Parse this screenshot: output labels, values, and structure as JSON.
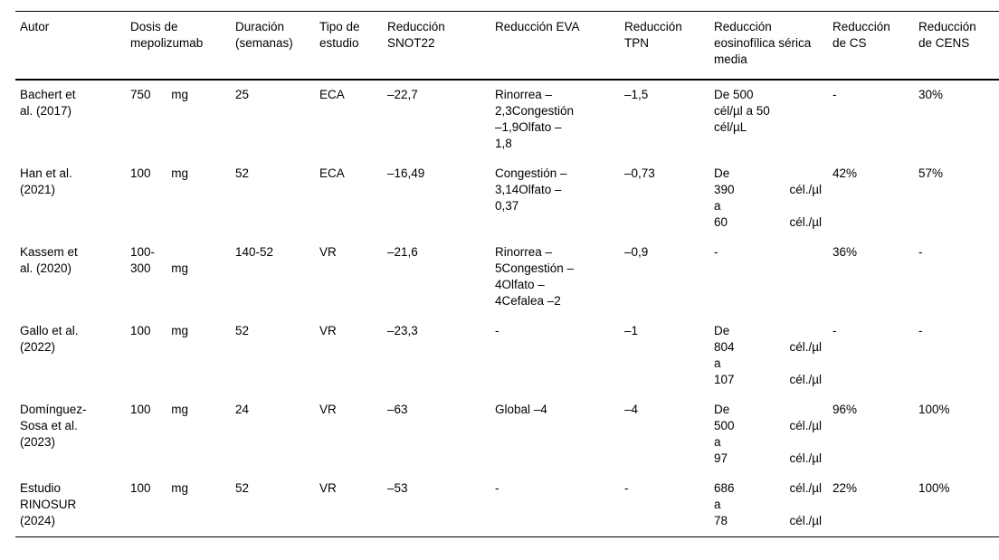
{
  "colors": {
    "background": "#ffffff",
    "text": "#000000",
    "rule": "#000000"
  },
  "table": {
    "columns": [
      {
        "id": "autor",
        "label": "Autor"
      },
      {
        "id": "dosis",
        "label": "Dosis de mepolizumab"
      },
      {
        "id": "duracion",
        "label": "Duración (semanas)"
      },
      {
        "id": "tipo",
        "label": "Tipo de estudio"
      },
      {
        "id": "snot22",
        "label": "Reducción SNOT22"
      },
      {
        "id": "eva",
        "label": "Reducción EVA"
      },
      {
        "id": "tpn",
        "label": "Reducción TPN"
      },
      {
        "id": "eos",
        "label": "Reducción eosinofílica sérica media"
      },
      {
        "id": "cs",
        "label": "Reducción de CS"
      },
      {
        "id": "cens",
        "label": "Reducción de CENS"
      }
    ],
    "rows": [
      {
        "autor": [
          "Bachert et",
          "al. (2017)"
        ],
        "dosis": [
          [
            "750",
            "mg"
          ]
        ],
        "duracion": "25",
        "tipo": "ECA",
        "snot22": "–22,7",
        "eva": [
          "Rinorrea –",
          "2,3Congestión",
          "–1,9Olfato –",
          "1,8"
        ],
        "tpn": "–1,5",
        "eos": [
          "De 500",
          "cél/µl a 50",
          "cél/µL"
        ],
        "cs": "-",
        "cens": "30%"
      },
      {
        "autor": [
          "Han et al.",
          "(2021)"
        ],
        "dosis": [
          [
            "100",
            "mg"
          ]
        ],
        "duracion": "52",
        "tipo": "ECA",
        "snot22": "–16,49",
        "eva": [
          "Congestión –",
          "3,14Olfato –",
          "0,37"
        ],
        "tpn": "–0,73",
        "eos": [
          "De",
          [
            "390",
            "cél./µl"
          ],
          "a",
          [
            "60",
            "cél./µl"
          ]
        ],
        "cs": "42%",
        "cens": "57%"
      },
      {
        "autor": [
          "Kassem et",
          "al. (2020)"
        ],
        "dosis": [
          "100-",
          [
            "300",
            "mg"
          ]
        ],
        "duracion": "140-52",
        "tipo": "VR",
        "snot22": "–21,6",
        "eva": [
          "Rinorrea –",
          "5Congestión –",
          "4Olfato –",
          "4Cefalea –2"
        ],
        "tpn": "–0,9",
        "eos": "-",
        "cs": "36%",
        "cens": "-"
      },
      {
        "autor": [
          "Gallo et al.",
          "(2022)"
        ],
        "dosis": [
          [
            "100",
            "mg"
          ]
        ],
        "duracion": "52",
        "tipo": "VR",
        "snot22": "–23,3",
        "eva": "-",
        "tpn": "–1",
        "eos": [
          "De",
          [
            "804",
            "cél./µl"
          ],
          "a",
          [
            "107",
            "cél./µl"
          ]
        ],
        "cs": "-",
        "cens": "-"
      },
      {
        "autor": [
          "Domínguez-",
          "Sosa et al.",
          "(2023)"
        ],
        "dosis": [
          [
            "100",
            "mg"
          ]
        ],
        "duracion": "24",
        "tipo": "VR",
        "snot22": "–63",
        "eva": "Global –4",
        "tpn": "–4",
        "eos": [
          "De",
          [
            "500",
            "cél./µl"
          ],
          "a",
          [
            "97",
            "cél./µl"
          ]
        ],
        "cs": "96%",
        "cens": "100%"
      },
      {
        "autor": [
          "Estudio",
          "RINOSUR",
          "(2024)"
        ],
        "dosis": [
          [
            "100",
            "mg"
          ]
        ],
        "duracion": "52",
        "tipo": "VR",
        "snot22": "–53",
        "eva": "-",
        "tpn": "-",
        "eos": [
          [
            "686",
            "cél./µl"
          ],
          "a",
          [
            "78",
            "cél./µl"
          ]
        ],
        "cs": "22%",
        "cens": "100%"
      }
    ]
  }
}
